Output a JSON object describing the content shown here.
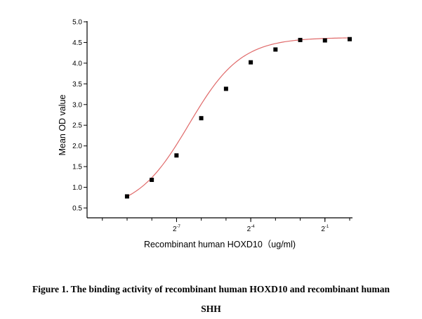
{
  "figure": {
    "caption_line1": "Figure 1. The binding activity of recombinant human HOXD10 and recombinant human",
    "caption_line2": "SHH"
  },
  "chart_data": {
    "type": "scatter",
    "xlabel": "Recombinant human HOXD10（ug/ml)",
    "ylabel": "Mean OD value",
    "x_scale": "log2",
    "x_ticks": [
      {
        "base": "2",
        "exp": "-7",
        "value": 0.0078125
      },
      {
        "base": "2",
        "exp": "-4",
        "value": 0.0625
      },
      {
        "base": "2",
        "exp": "-1",
        "value": 0.5
      }
    ],
    "ylim": [
      0.3,
      5.0
    ],
    "y_ticks": [
      "0.5",
      "1.0",
      "1.5",
      "2.0",
      "2.5",
      "3.0",
      "3.5",
      "4.0",
      "4.5",
      "5.0"
    ],
    "series": [
      {
        "marker": "square",
        "color": "#000000",
        "fit_color": "#e06a6a",
        "points": [
          {
            "x": 0.00195,
            "y": 0.78
          },
          {
            "x": 0.0039,
            "y": 1.18
          },
          {
            "x": 0.0078,
            "y": 1.77
          },
          {
            "x": 0.0156,
            "y": 2.67
          },
          {
            "x": 0.03125,
            "y": 3.38
          },
          {
            "x": 0.0625,
            "y": 4.02
          },
          {
            "x": 0.125,
            "y": 4.33
          },
          {
            "x": 0.25,
            "y": 4.56
          },
          {
            "x": 0.5,
            "y": 4.55
          },
          {
            "x": 1.0,
            "y": 4.58
          }
        ]
      }
    ],
    "fit": {
      "model": "4PL",
      "bottom": 0.42,
      "top": 4.62,
      "log2_ec50": -6.5,
      "slope": 0.95,
      "x_range": [
        0.00195,
        1.0
      ]
    }
  }
}
